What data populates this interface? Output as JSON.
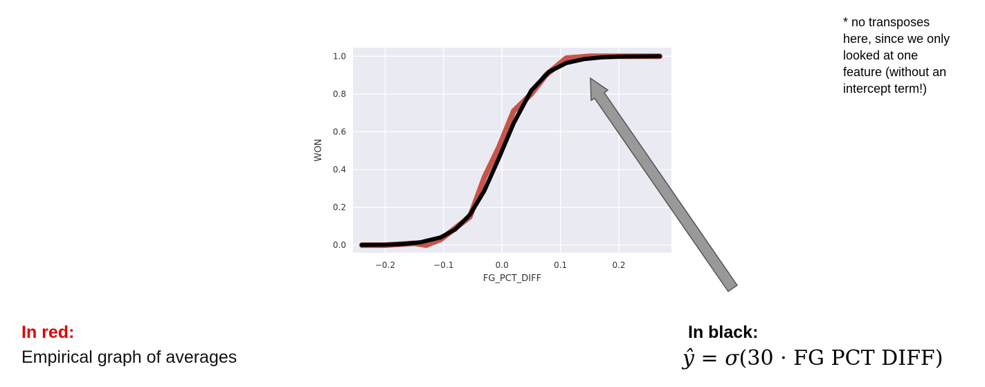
{
  "chart_data": {
    "type": "line",
    "xlabel": "FG_PCT_DIFF",
    "ylabel": "WON",
    "xlim": [
      -0.255,
      0.29
    ],
    "ylim": [
      -0.04,
      1.045
    ],
    "xticks": [
      "-0.2",
      "-0.1",
      "0.0",
      "0.1",
      "0.2"
    ],
    "xtick_values": [
      -0.2,
      -0.1,
      0.0,
      0.1,
      0.2
    ],
    "yticks": [
      "0.0",
      "0.2",
      "0.4",
      "0.6",
      "0.8",
      "1.0"
    ],
    "ytick_values": [
      0.0,
      0.2,
      0.4,
      0.6,
      0.8,
      1.0
    ],
    "grid": true,
    "background": "#eaeaf2",
    "series": [
      {
        "color": "#c0392b",
        "x": [
          -0.24,
          -0.2,
          -0.15,
          -0.13,
          -0.105,
          -0.08,
          -0.055,
          -0.03,
          -0.005,
          0.02,
          0.05,
          0.075,
          0.11,
          0.15,
          0.2,
          0.27
        ],
        "y": [
          0.0,
          0.0,
          0.01,
          0.0,
          0.03,
          0.09,
          0.15,
          0.36,
          0.52,
          0.71,
          0.8,
          0.9,
          0.99,
          1.0,
          1.0,
          1.0
        ]
      },
      {
        "color": "#000000",
        "x": [
          -0.24,
          -0.2,
          -0.17,
          -0.14,
          -0.105,
          -0.08,
          -0.055,
          -0.03,
          -0.005,
          0.02,
          0.05,
          0.08,
          0.11,
          0.14,
          0.17,
          0.2,
          0.27
        ],
        "y": [
          0.001,
          0.002,
          0.006,
          0.015,
          0.041,
          0.083,
          0.161,
          0.289,
          0.463,
          0.646,
          0.818,
          0.917,
          0.964,
          0.985,
          0.994,
          0.998,
          1.0
        ]
      }
    ],
    "arrow_color": "#999999"
  },
  "note": {
    "lines": [
      "* no transposes",
      "here, since we only",
      "looked at one",
      "feature (without an",
      "intercept term!)"
    ]
  },
  "legend": {
    "red_title": "In red:",
    "red_desc": "Empirical graph of averages",
    "black_title": "In black:"
  },
  "formula": {
    "lhs": "ŷ",
    "op": "=",
    "fn": "σ",
    "args": "(30 · FG PCT DIFF)"
  }
}
